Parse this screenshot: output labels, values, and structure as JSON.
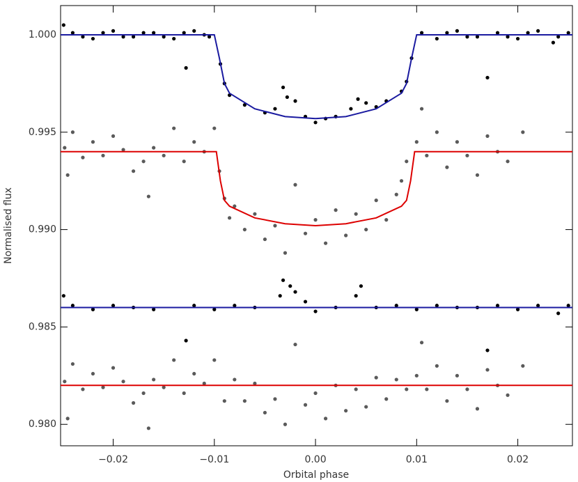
{
  "chart_data": {
    "type": "scatter",
    "xlabel": "Orbital phase",
    "ylabel": "Normalised flux",
    "xlim": [
      -0.0252,
      0.0254
    ],
    "ylim": [
      0.9789,
      1.0015
    ],
    "xticks": [
      {
        "value": -0.02,
        "label": "−0.02"
      },
      {
        "value": -0.01,
        "label": "−0.01"
      },
      {
        "value": 0,
        "label": "0.00"
      },
      0.01,
      0.02
    ],
    "yticks": [
      {
        "value": 0.98,
        "label": "0.980"
      },
      0.985,
      {
        "value": 0.99,
        "label": "0.990"
      },
      0.995,
      {
        "value": 1,
        "label": "1.000"
      }
    ],
    "series": [
      {
        "style": "markers",
        "color": "#000000",
        "x": [
          -0.0249,
          -0.024,
          -0.023,
          -0.022,
          -0.021,
          -0.02,
          -0.019,
          -0.018,
          -0.017,
          -0.016,
          -0.015,
          -0.014,
          -0.013,
          -0.0128,
          -0.012,
          -0.011,
          -0.0105,
          -0.0094,
          -0.009,
          -0.0085,
          -0.007,
          -0.005,
          -0.004,
          -0.0032,
          -0.0028,
          -0.002,
          -0.001,
          0,
          0.001,
          0.002,
          0.0035,
          0.0042,
          0.005,
          0.006,
          0.007,
          0.0085,
          0.009,
          0.0095,
          0.0105,
          0.012,
          0.013,
          0.014,
          0.015,
          0.016,
          0.017,
          0.018,
          0.019,
          0.02,
          0.021,
          0.022,
          0.0235,
          0.024,
          0.025
        ],
        "values": [
          1.0005,
          1.0001,
          0.9999,
          0.9998,
          1.0001,
          1.0002,
          0.9999,
          0.9999,
          1.0001,
          1.0001,
          0.9999,
          0.9998,
          1.0001,
          0.9983,
          1.0002,
          1.0,
          0.9999,
          0.9985,
          0.9975,
          0.9969,
          0.9964,
          0.996,
          0.9962,
          0.9973,
          0.9968,
          0.9966,
          0.9958,
          0.9955,
          0.9957,
          0.9958,
          0.9962,
          0.9967,
          0.9965,
          0.9963,
          0.9966,
          0.9971,
          0.9976,
          0.9988,
          1.0001,
          0.9998,
          1.0001,
          1.0002,
          0.9999,
          0.9999,
          0.9978,
          1.0001,
          0.9999,
          0.9998,
          1.0001,
          1.0002,
          0.9996,
          0.9999,
          1.0001
        ]
      },
      {
        "style": "line",
        "color": "#1a1aa0",
        "x": [
          -0.0252,
          -0.01,
          -0.0095,
          -0.009,
          -0.0085,
          -0.006,
          -0.003,
          0,
          0.003,
          0.006,
          0.0085,
          0.009,
          0.0095,
          0.01,
          0.0254
        ],
        "values": [
          1,
          1,
          0.9988,
          0.9975,
          0.997,
          0.9962,
          0.9958,
          0.9957,
          0.9958,
          0.9962,
          0.997,
          0.9975,
          0.9988,
          1,
          1
        ]
      },
      {
        "style": "markers",
        "color": "#5a5a5a",
        "x": [
          -0.0248,
          -0.0245,
          -0.024,
          -0.023,
          -0.022,
          -0.021,
          -0.02,
          -0.019,
          -0.018,
          -0.017,
          -0.0165,
          -0.016,
          -0.015,
          -0.014,
          -0.013,
          -0.012,
          -0.011,
          -0.01,
          -0.0095,
          -0.009,
          -0.0085,
          -0.008,
          -0.007,
          -0.006,
          -0.005,
          -0.004,
          -0.003,
          -0.002,
          -0.001,
          0,
          0.001,
          0.002,
          0.003,
          0.004,
          0.005,
          0.006,
          0.007,
          0.008,
          0.0085,
          0.009,
          0.01,
          0.0105,
          0.011,
          0.012,
          0.013,
          0.014,
          0.015,
          0.016,
          0.017,
          0.018,
          0.019,
          0.0205
        ],
        "values": [
          0.9942,
          0.9928,
          0.995,
          0.9937,
          0.9945,
          0.9938,
          0.9948,
          0.9941,
          0.993,
          0.9935,
          0.9917,
          0.9942,
          0.9938,
          0.9952,
          0.9935,
          0.9945,
          0.994,
          0.9952,
          0.993,
          0.9916,
          0.9906,
          0.9912,
          0.99,
          0.9908,
          0.9895,
          0.9902,
          0.9888,
          0.9923,
          0.9898,
          0.9905,
          0.9893,
          0.991,
          0.9897,
          0.9908,
          0.99,
          0.9915,
          0.9905,
          0.9918,
          0.9925,
          0.9935,
          0.9945,
          0.9962,
          0.9938,
          0.995,
          0.9932,
          0.9945,
          0.9938,
          0.9928,
          0.9948,
          0.994,
          0.9935,
          0.995
        ]
      },
      {
        "style": "line",
        "color": "#dd0000",
        "x": [
          -0.0252,
          -0.0098,
          -0.0094,
          -0.009,
          -0.0085,
          -0.006,
          -0.003,
          0,
          0.003,
          0.006,
          0.0085,
          0.009,
          0.0094,
          0.0098,
          0.0254
        ],
        "values": [
          0.994,
          0.994,
          0.9925,
          0.9915,
          0.9912,
          0.9906,
          0.9903,
          0.9902,
          0.9903,
          0.9906,
          0.9912,
          0.9915,
          0.9925,
          0.994,
          0.994
        ]
      },
      {
        "style": "markers",
        "color": "#000000",
        "x": [
          -0.0249,
          -0.024,
          -0.022,
          -0.02,
          -0.018,
          -0.016,
          -0.0128,
          -0.012,
          -0.01,
          -0.008,
          -0.006,
          -0.0035,
          -0.0032,
          -0.0025,
          -0.002,
          -0.001,
          0,
          0.002,
          0.004,
          0.0045,
          0.006,
          0.008,
          0.01,
          0.012,
          0.014,
          0.016,
          0.017,
          0.018,
          0.02,
          0.022,
          0.024,
          0.025
        ],
        "values": [
          0.9866,
          0.9861,
          0.9859,
          0.9861,
          0.986,
          0.9859,
          0.9843,
          0.9861,
          0.9859,
          0.9861,
          0.986,
          0.9866,
          0.9874,
          0.9871,
          0.9868,
          0.9863,
          0.9858,
          0.986,
          0.9866,
          0.9871,
          0.986,
          0.9861,
          0.9859,
          0.9861,
          0.986,
          0.986,
          0.9838,
          0.9861,
          0.9859,
          0.9861,
          0.9857,
          0.9861
        ]
      },
      {
        "style": "line",
        "color": "#1a1aa0",
        "x": [
          -0.0252,
          0.0254
        ],
        "values": [
          0.986,
          0.986
        ]
      },
      {
        "style": "markers",
        "color": "#5a5a5a",
        "x": [
          -0.0248,
          -0.0245,
          -0.024,
          -0.023,
          -0.022,
          -0.021,
          -0.02,
          -0.019,
          -0.018,
          -0.017,
          -0.0165,
          -0.016,
          -0.015,
          -0.014,
          -0.013,
          -0.012,
          -0.011,
          -0.01,
          -0.009,
          -0.008,
          -0.007,
          -0.006,
          -0.005,
          -0.004,
          -0.003,
          -0.002,
          -0.001,
          0,
          0.001,
          0.002,
          0.003,
          0.004,
          0.005,
          0.006,
          0.007,
          0.008,
          0.009,
          0.01,
          0.0105,
          0.011,
          0.012,
          0.013,
          0.014,
          0.015,
          0.016,
          0.017,
          0.018,
          0.019,
          0.0205
        ],
        "values": [
          0.9822,
          0.9803,
          0.9831,
          0.9818,
          0.9826,
          0.9819,
          0.9829,
          0.9822,
          0.9811,
          0.9816,
          0.9798,
          0.9823,
          0.9819,
          0.9833,
          0.9816,
          0.9826,
          0.9821,
          0.9833,
          0.9812,
          0.9823,
          0.9812,
          0.9821,
          0.9806,
          0.9813,
          0.98,
          0.9841,
          0.981,
          0.9816,
          0.9803,
          0.982,
          0.9807,
          0.9818,
          0.9809,
          0.9824,
          0.9813,
          0.9823,
          0.9818,
          0.9825,
          0.9842,
          0.9818,
          0.983,
          0.9812,
          0.9825,
          0.9818,
          0.9808,
          0.9828,
          0.982,
          0.9815,
          0.983
        ]
      },
      {
        "style": "line",
        "color": "#dd0000",
        "x": [
          -0.0252,
          0.0254
        ],
        "values": [
          0.982,
          0.982
        ]
      }
    ]
  }
}
